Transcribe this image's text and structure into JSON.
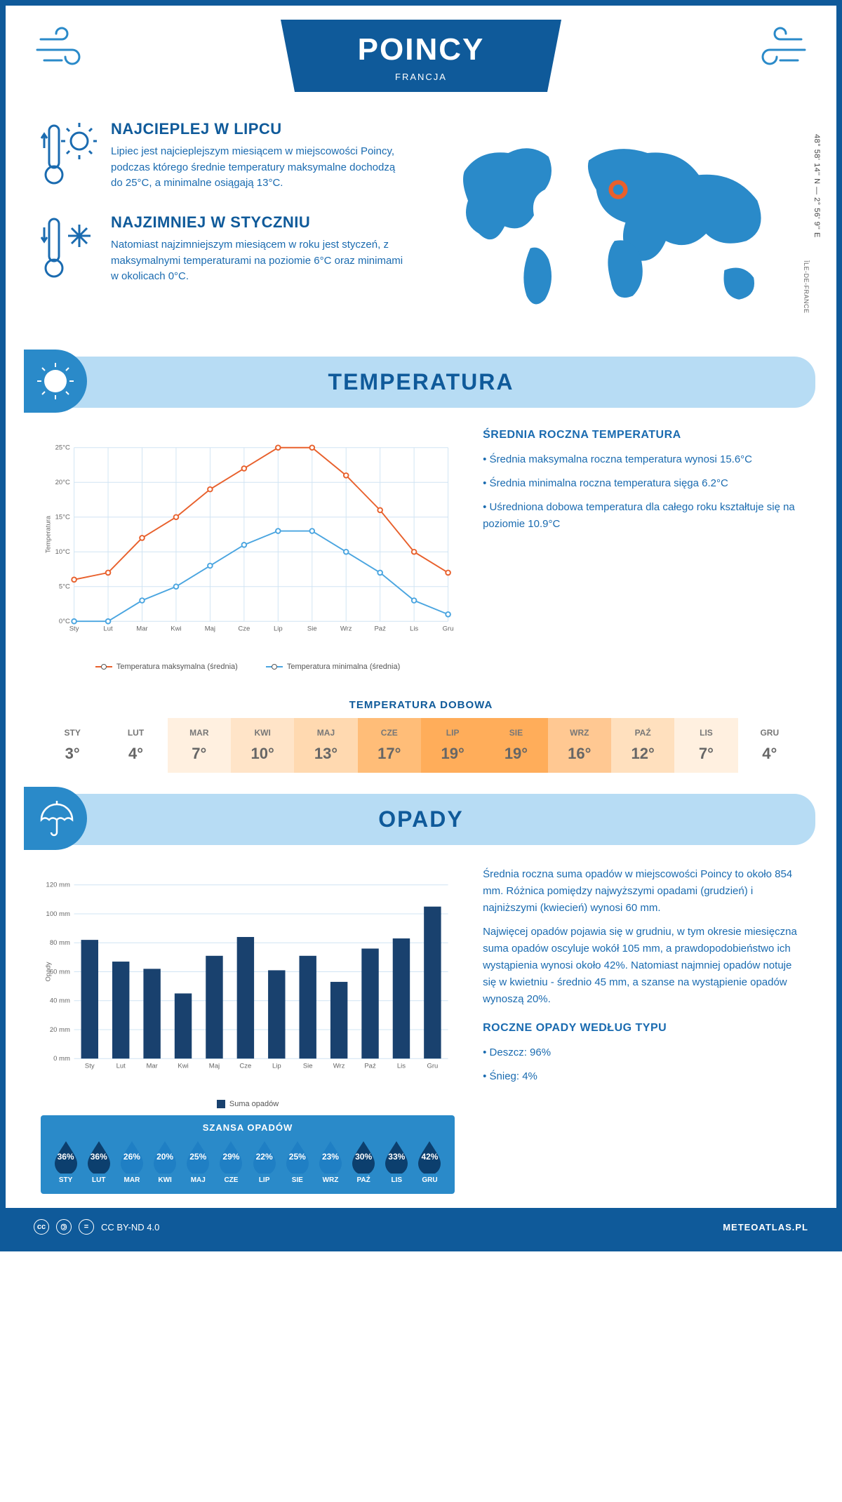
{
  "header": {
    "title": "POINCY",
    "country": "FRANCJA"
  },
  "coords": "48° 58' 14'' N — 2° 56' 9'' E",
  "region": "ÎLE-DE-FRANCE",
  "colors": {
    "primary": "#0f5a9a",
    "accent": "#2a8ac9",
    "light_band": "#b7dcf4",
    "max_line": "#e8602c",
    "min_line": "#4aa5e0",
    "bar_fill": "#19416e",
    "drop_dark": "#0c3f6e",
    "drop_light": "#1f7fc4"
  },
  "facts": {
    "warm": {
      "title": "NAJCIEPLEJ W LIPCU",
      "body": "Lipiec jest najcieplejszym miesiącem w miejscowości Poincy, podczas którego średnie temperatury maksymalne dochodzą do 25°C, a minimalne osiągają 13°C."
    },
    "cold": {
      "title": "NAJZIMNIEJ W STYCZNIU",
      "body": "Natomiast najzimniejszym miesiącem w roku jest styczeń, z maksymalnymi temperaturami na poziomie 6°C oraz minimami w okolicach 0°C."
    }
  },
  "section_temp": "TEMPERATURA",
  "section_precip": "OPADY",
  "temp_chart": {
    "type": "line",
    "months": [
      "Sty",
      "Lut",
      "Mar",
      "Kwi",
      "Maj",
      "Cze",
      "Lip",
      "Sie",
      "Wrz",
      "Paź",
      "Lis",
      "Gru"
    ],
    "series": [
      {
        "name": "Temperatura maksymalna (średnia)",
        "color": "#e8602c",
        "values": [
          6,
          7,
          12,
          15,
          19,
          22,
          25,
          25,
          21,
          16,
          10,
          7
        ]
      },
      {
        "name": "Temperatura minimalna (średnia)",
        "color": "#4aa5e0",
        "values": [
          0,
          0,
          3,
          5,
          8,
          11,
          13,
          13,
          10,
          7,
          3,
          1
        ]
      }
    ],
    "y_label": "Temperatura",
    "y_ticks": [
      0,
      5,
      10,
      15,
      20,
      25
    ],
    "y_suffix": "°C"
  },
  "temp_text": {
    "title": "ŚREDNIA ROCZNA TEMPERATURA",
    "bullets": [
      "Średnia maksymalna roczna temperatura wynosi 15.6°C",
      "Średnia minimalna roczna temperatura sięga 6.2°C",
      "Uśredniona dobowa temperatura dla całego roku kształtuje się na poziomie 10.9°C"
    ]
  },
  "daily": {
    "title": "TEMPERATURA DOBOWA",
    "months": [
      "STY",
      "LUT",
      "MAR",
      "KWI",
      "MAJ",
      "CZE",
      "LIP",
      "SIE",
      "WRZ",
      "PAŹ",
      "LIS",
      "GRU"
    ],
    "values": [
      "3°",
      "4°",
      "7°",
      "10°",
      "13°",
      "17°",
      "19°",
      "19°",
      "16°",
      "12°",
      "7°",
      "4°"
    ],
    "cell_colors": [
      "#ffffff",
      "#ffffff",
      "#fff0e0",
      "#ffe4c8",
      "#ffd9b0",
      "#ffbd78",
      "#ffad5a",
      "#ffad5a",
      "#ffc892",
      "#ffe0be",
      "#fff0e0",
      "#ffffff"
    ]
  },
  "precip_chart": {
    "type": "bar",
    "months": [
      "Sty",
      "Lut",
      "Mar",
      "Kwi",
      "Maj",
      "Cze",
      "Lip",
      "Sie",
      "Wrz",
      "Paź",
      "Lis",
      "Gru"
    ],
    "values": [
      82,
      67,
      62,
      45,
      71,
      84,
      61,
      71,
      53,
      76,
      83,
      105
    ],
    "y_label": "Opady",
    "y_ticks": [
      0,
      20,
      40,
      60,
      80,
      100,
      120
    ],
    "y_suffix": " mm",
    "legend": "Suma opadów",
    "bar_color": "#19416e"
  },
  "precip_text": {
    "p1": "Średnia roczna suma opadów w miejscowości Poincy to około 854 mm. Różnica pomiędzy najwyższymi opadami (grudzień) i najniższymi (kwiecień) wynosi 60 mm.",
    "p2": "Najwięcej opadów pojawia się w grudniu, w tym okresie miesięczna suma opadów oscyluje wokół 105 mm, a prawdopodobieństwo ich wystąpienia wynosi około 42%. Natomiast najmniej opadów notuje się w kwietniu - średnio 45 mm, a szanse na wystąpienie opadów wynoszą 20%.",
    "by_type_title": "ROCZNE OPADY WEDŁUG TYPU",
    "by_type": [
      "Deszcz: 96%",
      "Śnieg: 4%"
    ]
  },
  "chance": {
    "title": "SZANSA OPADÓW",
    "months": [
      "STY",
      "LUT",
      "MAR",
      "KWI",
      "MAJ",
      "CZE",
      "LIP",
      "SIE",
      "WRZ",
      "PAŹ",
      "LIS",
      "GRU"
    ],
    "values": [
      "36%",
      "36%",
      "26%",
      "20%",
      "25%",
      "29%",
      "22%",
      "25%",
      "23%",
      "30%",
      "33%",
      "42%"
    ],
    "shades": [
      "dark",
      "dark",
      "light",
      "light",
      "light",
      "light",
      "light",
      "light",
      "light",
      "dark",
      "dark",
      "dark"
    ]
  },
  "footer": {
    "license": "CC BY-ND 4.0",
    "site": "METEOATLAS.PL"
  }
}
